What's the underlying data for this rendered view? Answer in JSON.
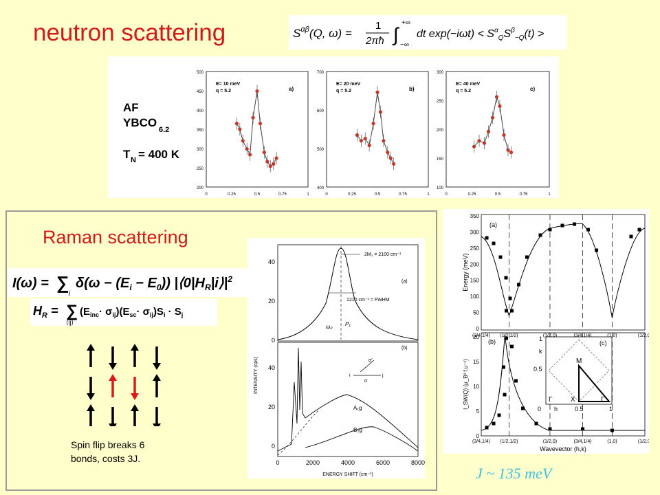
{
  "titles": {
    "neutron": "neutron scattering",
    "raman": "Raman scattering"
  },
  "equations": {
    "correlation": "S^{αβ}(Q,ω) = 1/(2πħ) ∫_{-∞}^{+∞} dt exp(−iωt) < S^α_Q S^β_{−Q}(t) >",
    "raman_intensity": "I(ω) = Σ_i δ(ω − (E_i − E_0)) |⟨0|H_R|i⟩|²",
    "raman_hamiltonian": "H_R = Σ_⟨ij⟩ (E_inc · σ_ij)(E_sc · σ_ij) S_i · S_j"
  },
  "neutron_panel": {
    "label_lines": [
      "AF",
      "YBCO",
      "6.2",
      "T",
      "N",
      "= 400 K"
    ],
    "subplots": [
      {
        "energy": "E= 10 meV",
        "q": "q = 5.2",
        "tag": "a)",
        "yticks": [
          "500",
          "450",
          "400",
          "350",
          "300",
          "250",
          "200"
        ],
        "xticks": [
          "0",
          "0.25",
          "0.5",
          "0.75",
          "1"
        ]
      },
      {
        "energy": "E= 20 meV",
        "q": "q = 5.2",
        "tag": "b)",
        "yticks": [
          "700",
          "600",
          "500",
          "400"
        ],
        "xticks": [
          "0",
          "0.25",
          "0.5",
          "0.75",
          "1"
        ]
      },
      {
        "energy": "E= 40 meV",
        "q": "q = 5.2",
        "tag": "c)",
        "yticks": [
          "300",
          "250",
          "200",
          "150",
          "100"
        ],
        "xticks": [
          "0",
          "0.25",
          "0.5",
          "0.75",
          "1"
        ]
      }
    ]
  },
  "raman_spectrum": {
    "ylabel": "INTENSITY (cps)",
    "xlabel": "ENERGY SHIFT (cm⁻¹)",
    "xticks": [
      "0",
      "2000",
      "4000",
      "6000",
      "8000"
    ],
    "top_yticks": [
      "40",
      "20",
      "0"
    ],
    "bottom_yticks": [
      "40",
      "20",
      "0"
    ],
    "annot_2m": "2M₂ = 2100 cm⁻¹",
    "annot_fwhm": "1210 cm⁻¹ = FWHM",
    "tag_a": "(a)",
    "tag_b": "(b)",
    "omega_p": "ωₚ",
    "p1": "P₁",
    "a1g": "A₁g",
    "b2g": "B₂g",
    "sigma_labels": [
      "σ′",
      "σ",
      "i",
      "j"
    ]
  },
  "spin_caption_lines": [
    "Spin flip breaks 6",
    "bonds, costs 3J."
  ],
  "spin_grid": [
    [
      "up",
      "down",
      "up",
      "down"
    ],
    [
      "down",
      "up-red",
      "down-red",
      "up"
    ],
    [
      "up",
      "down",
      "up",
      "down"
    ]
  ],
  "dispersion": {
    "top_ylabel": "Energy (meV)",
    "top_yticks": [
      "350",
      "300",
      "250",
      "200",
      "150",
      "100",
      "50",
      "0"
    ],
    "bottom_ylabel": "I_SW(Q) (μ_B² f.u⁻¹)",
    "bottom_yticks": [
      "20",
      "15",
      "10",
      "5",
      "0"
    ],
    "xticks": [
      "(3/4,1/4)",
      "(1/2,1/2)",
      "(1/2,0)",
      "(3/4,1/4)",
      "(1,0)",
      "(1/2,0)"
    ],
    "xlabel": "Wavevector (h,k)",
    "tag_a": "(a)",
    "tag_b": "(b)",
    "inset_tag": "(c)",
    "inset_labels": {
      "k": "k",
      "h": "h",
      "M": "M",
      "Gamma": "Γ",
      "X": "X",
      "Gamma2": "Γ",
      "k1": "1",
      "k05": "0.5",
      "h0": "0",
      "h05": "0.5",
      "h1": "1"
    }
  },
  "exchange_value": "J ~ 135 meV",
  "colors": {
    "background": "#ffffcc",
    "title_red": "#d11a1a",
    "caption_blue": "#3fbfe0",
    "point_red": "#c0392b"
  }
}
